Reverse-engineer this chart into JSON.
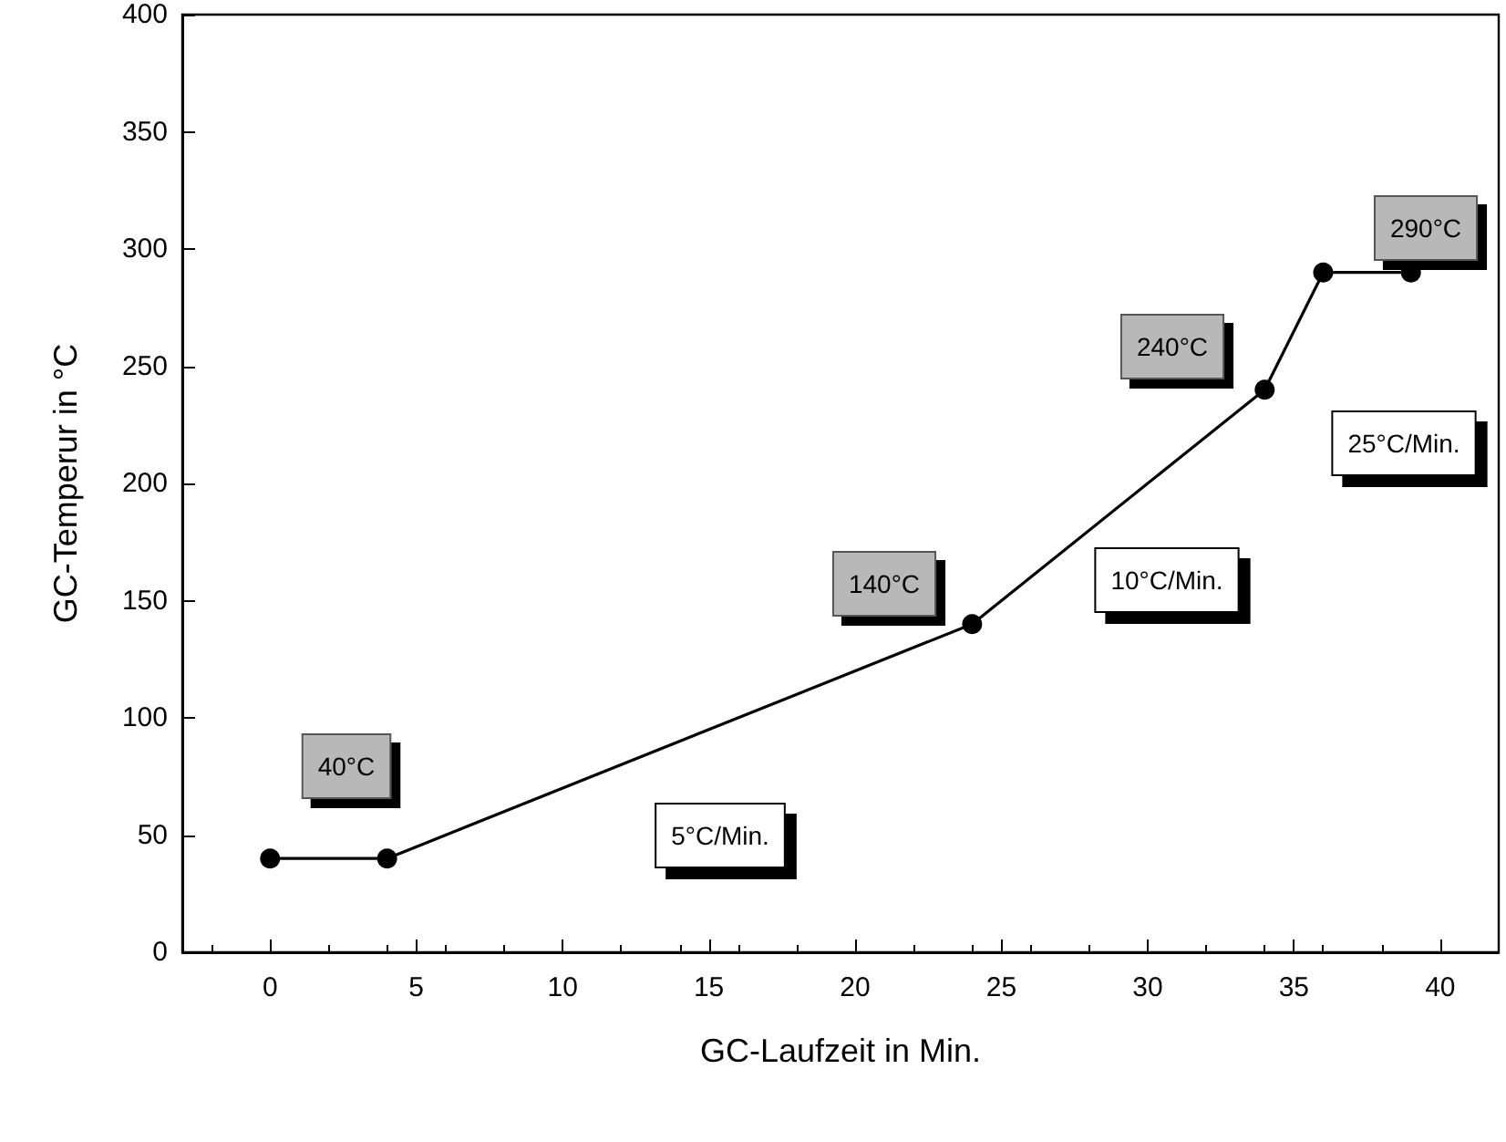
{
  "chart_data": {
    "type": "line",
    "xlabel": "GC-Laufzeit in Min.",
    "ylabel": "GC-Temperur in °C",
    "x": [
      0,
      4,
      24,
      34,
      36,
      39
    ],
    "series": [
      {
        "color": "#000000",
        "values": [
          40,
          40,
          140,
          240,
          290,
          290
        ]
      }
    ],
    "xlim": [
      -3,
      42
    ],
    "xticks": [
      0,
      5,
      10,
      15,
      20,
      25,
      30,
      35,
      40
    ],
    "ylim": [
      0,
      400
    ],
    "yticks": [
      0,
      50,
      100,
      150,
      200,
      250,
      300,
      350,
      400
    ],
    "marker": "circle",
    "line_style": "solid",
    "grid": false,
    "annotations": [
      "40°C",
      "140°C",
      "240°C",
      "290°C",
      "5°C/Min.",
      "10°C/Min.",
      "25°C/Min."
    ]
  }
}
